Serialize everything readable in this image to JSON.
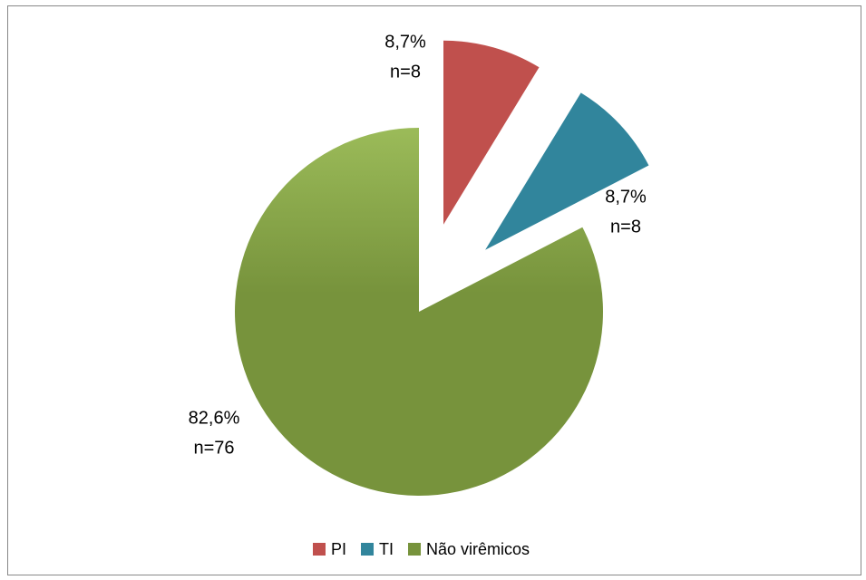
{
  "chart_data": {
    "type": "pie",
    "categories": [
      "PI",
      "TI",
      "Não virêmicos"
    ],
    "values": [
      8.7,
      8.7,
      82.6
    ],
    "value_labels": [
      "8,7%",
      "8,7%",
      "82,6%"
    ],
    "counts": [
      8,
      8,
      76
    ],
    "count_labels": [
      "n=8",
      "n=8",
      "n=76"
    ],
    "colors": [
      "#c0504d",
      "#31859c",
      "#77933c"
    ],
    "exploded": [
      true,
      true,
      false
    ],
    "legend": "bottom"
  }
}
